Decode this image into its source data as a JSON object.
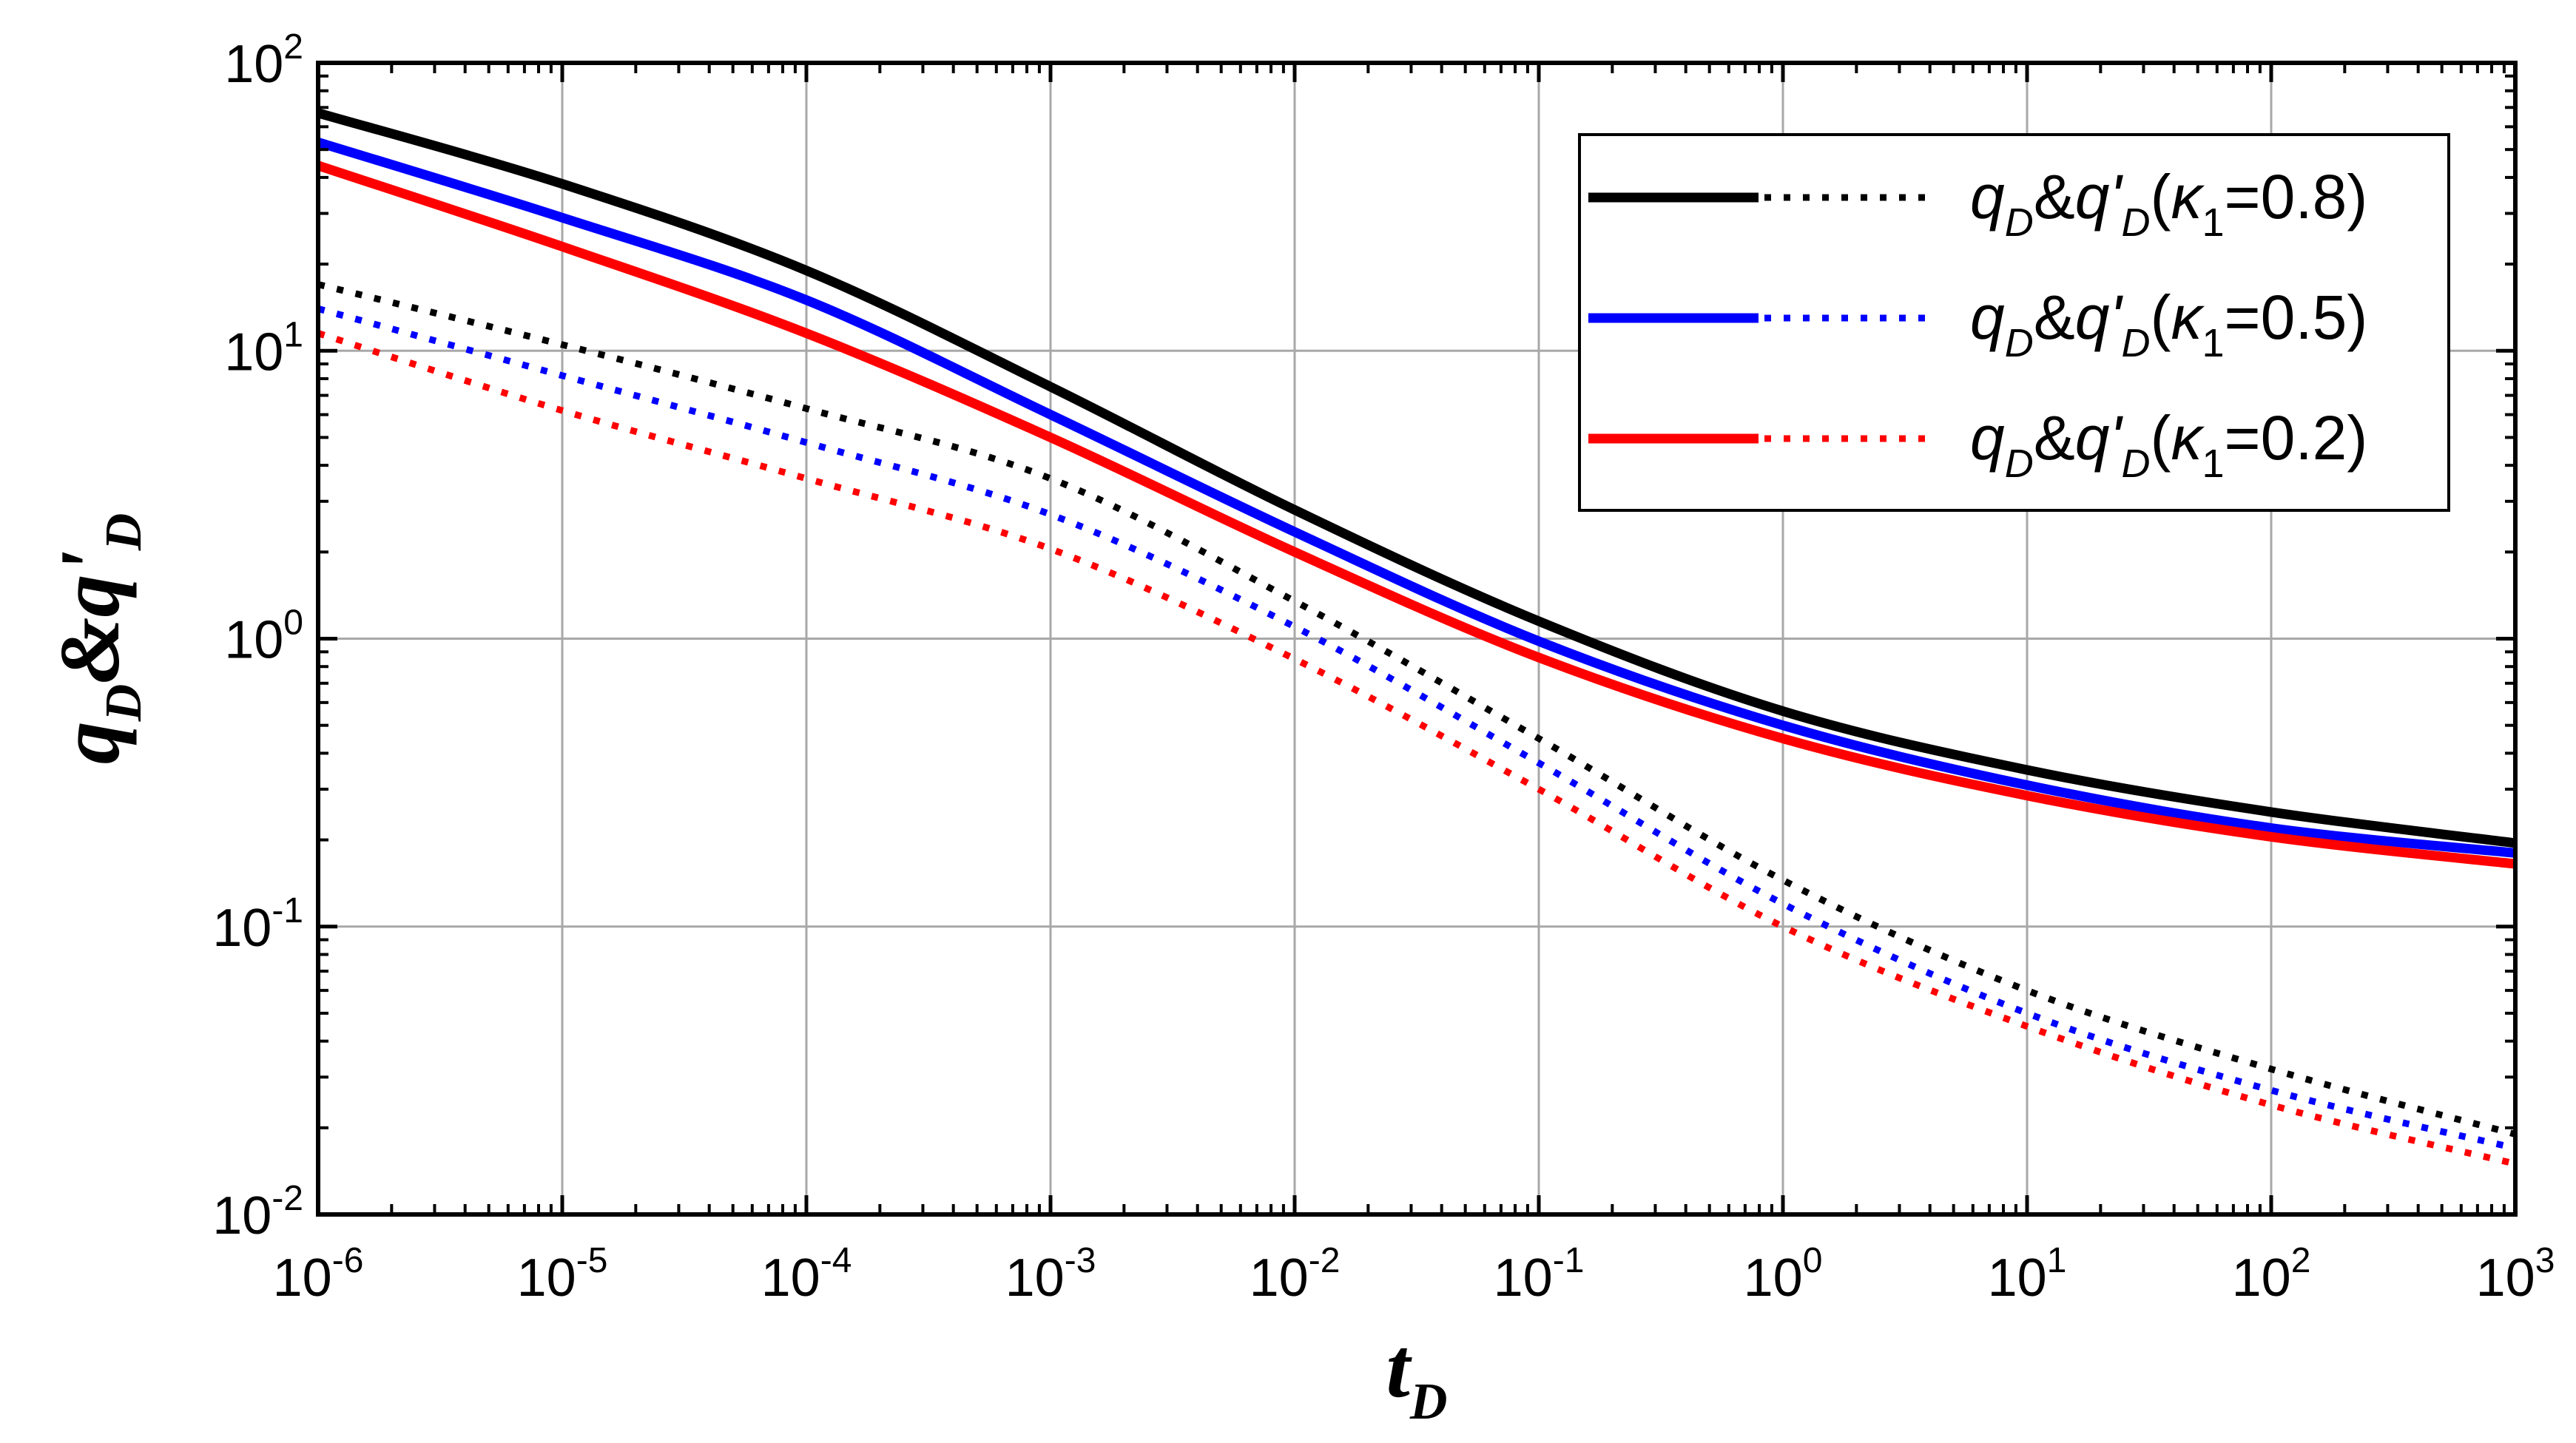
{
  "chart_data": {
    "type": "line",
    "x_scale": "log",
    "y_scale": "log",
    "xlim": [
      1e-06,
      1000
    ],
    "ylim": [
      0.01,
      100
    ],
    "grid": true,
    "legend_position": "top-right",
    "xlabel": {
      "main": "t",
      "sub": "D"
    },
    "ylabel": {
      "main": "q",
      "sub": "D",
      "amp": "&",
      "prime_main": "q'",
      "prime_sub": "D"
    },
    "x_ticks": [
      {
        "base": "10",
        "exp": "-6"
      },
      {
        "base": "10",
        "exp": "-5"
      },
      {
        "base": "10",
        "exp": "-4"
      },
      {
        "base": "10",
        "exp": "-3"
      },
      {
        "base": "10",
        "exp": "-2"
      },
      {
        "base": "10",
        "exp": "-1"
      },
      {
        "base": "10",
        "exp": "0"
      },
      {
        "base": "10",
        "exp": "1"
      },
      {
        "base": "10",
        "exp": "2"
      },
      {
        "base": "10",
        "exp": "3"
      }
    ],
    "y_ticks": [
      {
        "base": "10",
        "exp": "-2"
      },
      {
        "base": "10",
        "exp": "-1"
      },
      {
        "base": "10",
        "exp": "0"
      },
      {
        "base": "10",
        "exp": "1"
      },
      {
        "base": "10",
        "exp": "2"
      }
    ],
    "x": [
      1e-06,
      1e-05,
      0.0001,
      0.001,
      0.01,
      0.1,
      1,
      10,
      100,
      1000
    ],
    "series": [
      {
        "name": "q_D (κ1=0.8)",
        "color": "#000000",
        "style": "solid",
        "values": [
          67,
          38,
          19,
          7.5,
          2.8,
          1.15,
          0.56,
          0.35,
          0.25,
          0.195
        ]
      },
      {
        "name": "q_D (κ1=0.5)",
        "color": "#0000ff",
        "style": "solid",
        "values": [
          53,
          29,
          15,
          6.0,
          2.35,
          0.98,
          0.5,
          0.31,
          0.22,
          0.18
        ]
      },
      {
        "name": "q_D (κ1=0.2)",
        "color": "#ff0000",
        "style": "solid",
        "values": [
          44,
          23,
          11.5,
          5.0,
          2.0,
          0.86,
          0.45,
          0.285,
          0.205,
          0.165
        ]
      },
      {
        "name": "q'_D (κ1=0.8)",
        "color": "#000000",
        "style": "dotted",
        "values": [
          17,
          10.5,
          6.3,
          3.6,
          1.35,
          0.45,
          0.145,
          0.06,
          0.032,
          0.019
        ]
      },
      {
        "name": "q'_D (κ1=0.5)",
        "color": "#0000ff",
        "style": "dotted",
        "values": [
          14,
          8.2,
          4.8,
          2.7,
          1.1,
          0.37,
          0.12,
          0.05,
          0.027,
          0.017
        ]
      },
      {
        "name": "q'_D (κ1=0.2)",
        "color": "#ff0000",
        "style": "dotted",
        "values": [
          11.5,
          6.2,
          3.6,
          2.05,
          0.85,
          0.3,
          0.1,
          0.045,
          0.024,
          0.015
        ]
      }
    ],
    "legend": [
      {
        "q": "q",
        "sub": "D",
        "amp": "&",
        "qp": "q'",
        "sub2": "D",
        "open": "(",
        "kappa": "κ",
        "ksub": "1",
        "value": "=0.8)",
        "color": "#000000"
      },
      {
        "q": "q",
        "sub": "D",
        "amp": "&",
        "qp": "q'",
        "sub2": "D",
        "open": "(",
        "kappa": "κ",
        "ksub": "1",
        "value": "=0.5)",
        "color": "#0000ff"
      },
      {
        "q": "q",
        "sub": "D",
        "amp": "&",
        "qp": "q'",
        "sub2": "D",
        "open": "(",
        "kappa": "κ",
        "ksub": "1",
        "value": "=0.2)",
        "color": "#ff0000"
      }
    ]
  }
}
